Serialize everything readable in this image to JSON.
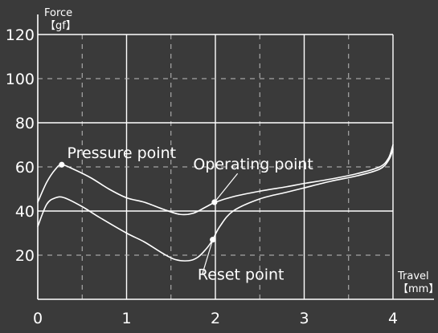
{
  "chart_data": {
    "type": "line",
    "title": "",
    "ylabel": "Force",
    "yunit": "【gf】",
    "xlabel": "Travel",
    "xunit": "【mm】",
    "xlim": [
      0,
      4
    ],
    "ylim": [
      0,
      120
    ],
    "xticks": [
      0,
      1,
      2,
      3,
      4
    ],
    "yticks": [
      20,
      40,
      60,
      80,
      100,
      120
    ],
    "xtick_labels": [
      "0",
      "1",
      "2",
      "3",
      "4"
    ],
    "ytick_labels": [
      "20",
      "40",
      "60",
      "80",
      100,
      120
    ],
    "grid": true,
    "series": [
      {
        "x": [
          0,
          0.1,
          0.2,
          0.27,
          0.4,
          0.6,
          0.8,
          1.0,
          1.2,
          1.4,
          1.6,
          1.75,
          1.9,
          2.0,
          2.2,
          2.5,
          2.8,
          3.0,
          3.3,
          3.6,
          3.85,
          3.95,
          4.0
        ],
        "y": [
          44,
          53,
          59,
          61,
          59,
          55,
          50,
          46,
          44,
          41,
          38.5,
          39,
          42,
          44,
          46.5,
          49,
          51,
          52.5,
          54.5,
          57,
          60,
          64,
          70
        ]
      },
      {
        "x": [
          0,
          0.1,
          0.2,
          0.3,
          0.5,
          0.7,
          1.0,
          1.2,
          1.4,
          1.55,
          1.7,
          1.8,
          1.9,
          1.97,
          2.05,
          2.2,
          2.5,
          2.8,
          3.0,
          3.3,
          3.6,
          3.85,
          3.95,
          4.0
        ],
        "y": [
          33,
          43,
          46,
          46,
          42,
          37,
          30,
          26,
          21,
          18,
          17.5,
          19,
          23,
          27,
          33,
          40,
          45.5,
          48.5,
          50.5,
          53.5,
          56,
          59,
          63,
          68
        ]
      }
    ],
    "points": [
      {
        "x": 0.27,
        "y": 61
      },
      {
        "x": 1.99,
        "y": 44
      },
      {
        "x": 1.97,
        "y": 27
      }
    ],
    "annotations": [
      {
        "text": "Pressure point",
        "x": 0.33,
        "y": 64
      },
      {
        "text": "Operating point",
        "x": 1.75,
        "y": 59
      },
      {
        "text": "Reset point",
        "x": 1.8,
        "y": 9
      }
    ]
  },
  "colors": {
    "background": "#3a3a3a",
    "line": "#ffffff",
    "grid": "#bdbdbd"
  }
}
